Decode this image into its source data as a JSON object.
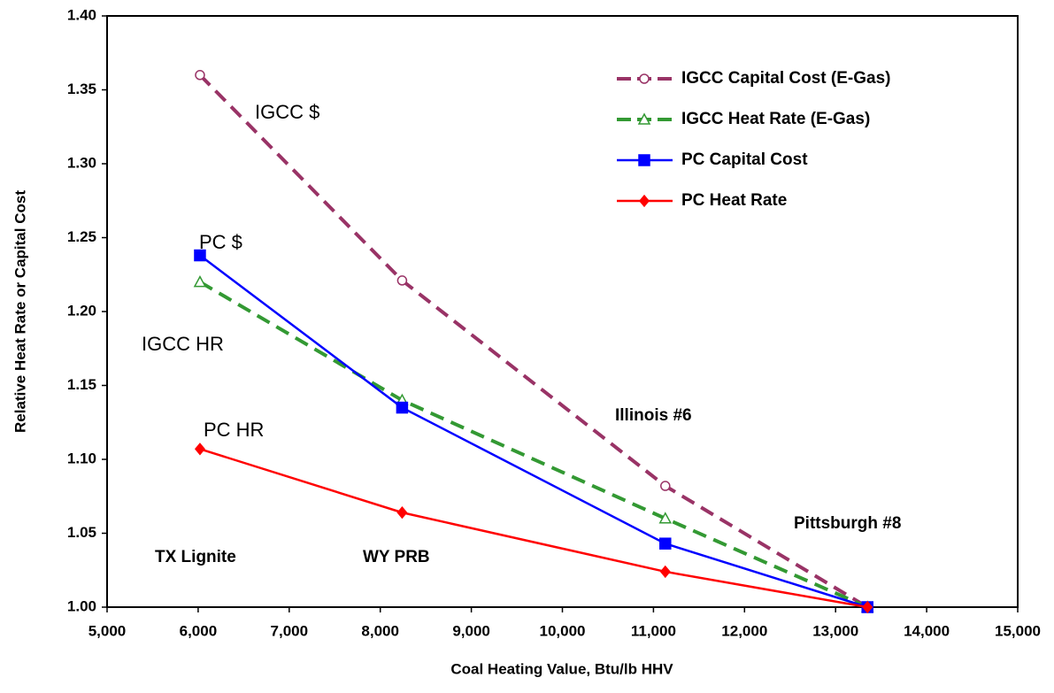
{
  "chart_data": {
    "type": "line",
    "x_label": "Coal Heating Value, Btu/lb HHV",
    "y_label": "Relative Heat Rate or Capital Cost",
    "xlim": [
      5000,
      15000
    ],
    "ylim": [
      1.0,
      1.4
    ],
    "xticks": [
      {
        "value": 5000,
        "label": "5,000"
      },
      {
        "value": 6000,
        "label": "6,000"
      },
      {
        "value": 7000,
        "label": "7,000"
      },
      {
        "value": 8000,
        "label": "8,000"
      },
      {
        "value": 9000,
        "label": "9,000"
      },
      {
        "value": 10000,
        "label": "10,000"
      },
      {
        "value": 11000,
        "label": "11,000"
      },
      {
        "value": 12000,
        "label": "12,000"
      },
      {
        "value": 13000,
        "label": "13,000"
      },
      {
        "value": 14000,
        "label": "14,000"
      },
      {
        "value": 15000,
        "label": "15,000"
      }
    ],
    "yticks": [
      {
        "value": 1.0,
        "label": "1.00"
      },
      {
        "value": 1.05,
        "label": "1.05"
      },
      {
        "value": 1.1,
        "label": "1.10"
      },
      {
        "value": 1.15,
        "label": "1.15"
      },
      {
        "value": 1.2,
        "label": "1.20"
      },
      {
        "value": 1.25,
        "label": "1.25"
      },
      {
        "value": 1.3,
        "label": "1.30"
      },
      {
        "value": 1.35,
        "label": "1.35"
      },
      {
        "value": 1.4,
        "label": "1.40"
      }
    ],
    "x": [
      6020,
      8240,
      11130,
      13350
    ],
    "series": [
      {
        "name": "IGCC Capital Cost (E-Gas)",
        "color": "#993366",
        "dashed": true,
        "marker": "circle",
        "filled": false,
        "values": [
          1.36,
          1.221,
          1.082,
          1.0
        ]
      },
      {
        "name": "IGCC Heat Rate (E-Gas)",
        "color": "#339933",
        "dashed": true,
        "marker": "triangle",
        "filled": false,
        "values": [
          1.22,
          1.14,
          1.06,
          1.0
        ]
      },
      {
        "name": "PC Capital Cost",
        "color": "#0000ff",
        "dashed": false,
        "marker": "square",
        "filled": true,
        "values": [
          1.238,
          1.135,
          1.043,
          1.0
        ]
      },
      {
        "name": "PC Heat Rate",
        "color": "#ff0000",
        "dashed": false,
        "marker": "diamond",
        "filled": true,
        "values": [
          1.107,
          1.064,
          1.024,
          1.0
        ]
      }
    ],
    "annotations": [
      "IGCC $",
      "PC $",
      "IGCC HR",
      "PC HR",
      "Illinois #6",
      "Pittsburgh #8",
      "TX Lignite",
      "WY PRB"
    ],
    "legend": "upper right"
  }
}
